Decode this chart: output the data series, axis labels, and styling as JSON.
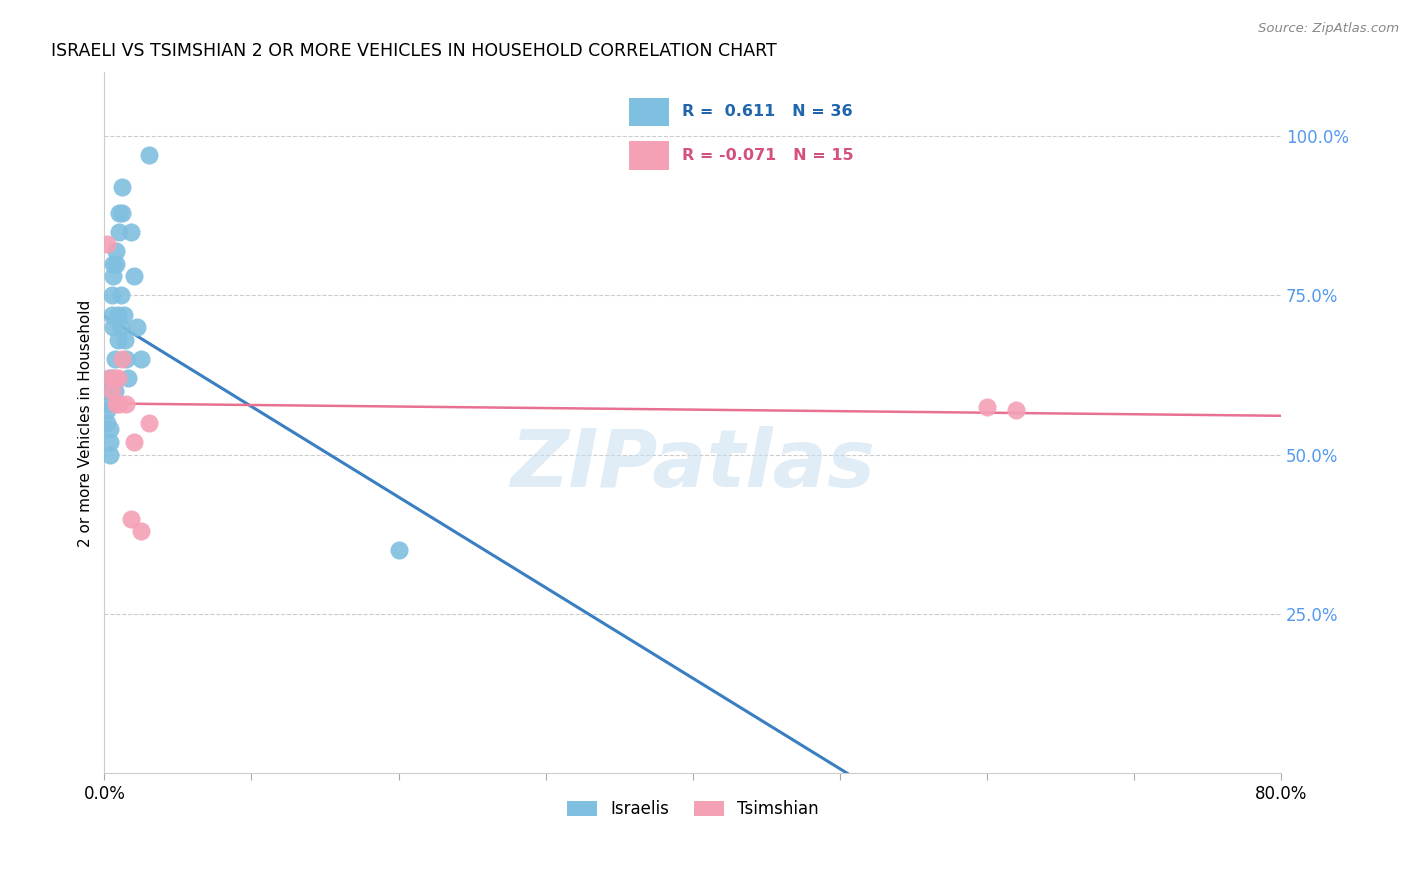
{
  "title": "ISRAELI VS TSIMSHIAN 2 OR MORE VEHICLES IN HOUSEHOLD CORRELATION CHART",
  "source": "Source: ZipAtlas.com",
  "ylabel": "2 or more Vehicles in Household",
  "xmin": 0.0,
  "xmax": 0.8,
  "ymin": 0.0,
  "ymax": 1.1,
  "x_ticks": [
    0.0,
    0.1,
    0.2,
    0.3,
    0.4,
    0.5,
    0.6,
    0.7,
    0.8
  ],
  "y_tick_labels_right": [
    "25.0%",
    "50.0%",
    "75.0%",
    "100.0%"
  ],
  "y_ticks_right": [
    0.25,
    0.5,
    0.75,
    1.0
  ],
  "israelis_x": [
    0.002,
    0.002,
    0.003,
    0.003,
    0.003,
    0.004,
    0.004,
    0.004,
    0.005,
    0.005,
    0.005,
    0.006,
    0.006,
    0.006,
    0.007,
    0.007,
    0.008,
    0.008,
    0.009,
    0.009,
    0.01,
    0.01,
    0.011,
    0.011,
    0.012,
    0.012,
    0.013,
    0.014,
    0.015,
    0.016,
    0.018,
    0.02,
    0.022,
    0.025,
    0.03,
    0.2
  ],
  "israelis_y": [
    0.55,
    0.57,
    0.58,
    0.6,
    0.62,
    0.5,
    0.52,
    0.54,
    0.75,
    0.72,
    0.62,
    0.8,
    0.78,
    0.7,
    0.65,
    0.6,
    0.82,
    0.8,
    0.72,
    0.68,
    0.88,
    0.85,
    0.75,
    0.7,
    0.92,
    0.88,
    0.72,
    0.68,
    0.65,
    0.62,
    0.85,
    0.78,
    0.7,
    0.65,
    0.97,
    0.35
  ],
  "tsimshian_x": [
    0.002,
    0.004,
    0.005,
    0.007,
    0.008,
    0.009,
    0.01,
    0.012,
    0.015,
    0.018,
    0.02,
    0.025,
    0.03,
    0.6,
    0.62
  ],
  "tsimshian_y": [
    0.83,
    0.62,
    0.6,
    0.62,
    0.58,
    0.62,
    0.58,
    0.65,
    0.58,
    0.4,
    0.52,
    0.38,
    0.55,
    0.575,
    0.57
  ],
  "R_israelis": 0.611,
  "N_israelis": 36,
  "R_tsimshian": -0.071,
  "N_tsimshian": 15,
  "blue_color": "#7fbfdf",
  "pink_color": "#f4a0b5",
  "blue_line_color": "#3a7fc1",
  "pink_line_color": "#e87090",
  "legend_blue_text_color": "#2166ac",
  "legend_pink_text_color": "#d45080",
  "right_axis_color": "#5599ee",
  "watermark_color": "#c8dff0",
  "background_color": "#ffffff",
  "grid_color": "#cccccc"
}
